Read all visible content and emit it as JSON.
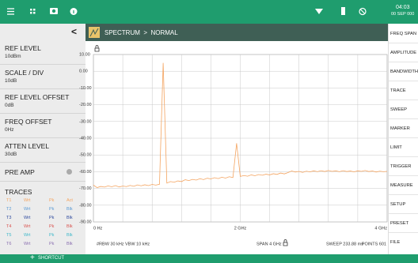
{
  "status_bar": {
    "time": "04:03",
    "date": "00 SEP 000"
  },
  "side_panel": {
    "items": [
      {
        "label": "REF LEVEL",
        "value": "10dBm"
      },
      {
        "label": "SCALE / DIV",
        "value": "10dB"
      },
      {
        "label": "REF LEVEL OFFSET",
        "value": "0dB"
      },
      {
        "label": "FREQ OFFSET",
        "value": "0Hz"
      },
      {
        "label": "ATTEN LEVEL",
        "value": "30dB"
      }
    ],
    "pre_amp": "PRE AMP",
    "traces": {
      "title": "TRACES",
      "rows": [
        {
          "cells": [
            "T1",
            "Wrt",
            "Pk",
            "Act"
          ],
          "color": "#f4a460"
        },
        {
          "cells": [
            "T2",
            "Wrt",
            "Pk",
            "Blk"
          ],
          "color": "#5b9bd5"
        },
        {
          "cells": [
            "T3",
            "Wrt",
            "Pk",
            "Blk"
          ],
          "color": "#2e4a9e"
        },
        {
          "cells": [
            "T4",
            "Wrt",
            "Pk",
            "Blk"
          ],
          "color": "#d9534f"
        },
        {
          "cells": [
            "T5",
            "Wrt",
            "Pk",
            "Blk"
          ],
          "color": "#3fb8c9"
        },
        {
          "cells": [
            "T6",
            "Wrt",
            "Pk",
            "Blk"
          ],
          "color": "#8a6fb0"
        }
      ]
    }
  },
  "header": {
    "breadcrumb": "SPECTRUM  >  NORMAL"
  },
  "chart_data": {
    "type": "line",
    "x": [
      0,
      0.05,
      0.1,
      0.15,
      0.2,
      0.25,
      0.3,
      0.35,
      0.4,
      0.45,
      0.5,
      0.55,
      0.6,
      0.65,
      0.7,
      0.75,
      0.8,
      0.85,
      0.9,
      0.95,
      1,
      1.05,
      1.1,
      1.15,
      1.2,
      1.25,
      1.3,
      1.35,
      1.4,
      1.45,
      1.5,
      1.55,
      1.6,
      1.65,
      1.7,
      1.75,
      1.8,
      1.85,
      1.9,
      1.95,
      2,
      2.05,
      2.1,
      2.15,
      2.2,
      2.25,
      2.3,
      2.35,
      2.4,
      2.45,
      2.5,
      2.55,
      2.6,
      2.65,
      2.7,
      2.75,
      2.8,
      2.85,
      2.9,
      2.95,
      3,
      3.05,
      3.1,
      3.15,
      3.2,
      3.25,
      3.3,
      3.35,
      3.4,
      3.45,
      3.5,
      3.55,
      3.6,
      3.65,
      3.7,
      3.75,
      3.8,
      3.85,
      3.9,
      3.95,
      4
    ],
    "series": [
      {
        "color": "#f4a460",
        "values": [
          -68,
          -69.5,
          -68.8,
          -69.2,
          -68.5,
          -69,
          -68.3,
          -69.1,
          -68.6,
          -68.9,
          -68.2,
          -68.7,
          -67.9,
          -68.4,
          -67.8,
          -68.3,
          -67.6,
          -68,
          -67.5,
          5,
          -66.8,
          -65.9,
          -66.3,
          -65.5,
          -65.9,
          -64.8,
          -65.3,
          -64.6,
          -65,
          -64.2,
          -64.7,
          -63.9,
          -64.3,
          -63.6,
          -64.1,
          -63.3,
          -63.8,
          -63,
          -63.5,
          -43,
          -62.8,
          -62.3,
          -62.7,
          -61.9,
          -62.4,
          -61.7,
          -62.1,
          -61.5,
          -61.9,
          -61.2,
          -61.6,
          -60.8,
          -61.3,
          -60.5,
          -59.6,
          -60.2,
          -59.8,
          -60.4,
          -59.7,
          -60.1,
          -59.5,
          -60,
          -59.4,
          -59.9,
          -59.3,
          -59.8,
          -59.5,
          -60,
          -59.4,
          -59.9,
          -59.6,
          -60.1,
          -59.5,
          -59.8,
          -59.3,
          -59.9,
          -59.6,
          -60.2,
          -59.7,
          -60,
          -59.8
        ]
      }
    ],
    "xlim": [
      0,
      4
    ],
    "xticks": [
      {
        "value": 0,
        "label": "0 Hz"
      },
      {
        "value": 2,
        "label": "2 GHz"
      },
      {
        "value": 4,
        "label": "4 GHz"
      }
    ],
    "ylim": [
      -90,
      10
    ],
    "yticks": [
      {
        "value": 10,
        "label": "10.00"
      },
      {
        "value": 0,
        "label": "0.00"
      },
      {
        "value": -10,
        "label": "-10.00"
      },
      {
        "value": -20,
        "label": "-20.00"
      },
      {
        "value": -30,
        "label": "-30.00"
      },
      {
        "value": -40,
        "label": "-40.00"
      },
      {
        "value": -50,
        "label": "-50.00"
      },
      {
        "value": -60,
        "label": "-60.00"
      },
      {
        "value": -70,
        "label": "-70.00"
      },
      {
        "value": -80,
        "label": "-80.00"
      },
      {
        "value": -90,
        "label": "-90.00"
      }
    ],
    "grid": true
  },
  "info_bar": {
    "rbw": "#RBW 30 kHz",
    "vbw": "VBW 10 kHz",
    "span": "SPAN 4 GHz",
    "sweep": "SWEEP 233.88 ms",
    "points": "POINTS 601"
  },
  "menu": [
    "FREQ SPAN",
    "AMPLITUDE",
    "BANDWIDTH",
    "TRACE",
    "SWEEP",
    "MARKER",
    "LIMIT",
    "TRIGGER",
    "MEASURE",
    "SETUP",
    "PRESET",
    "FILE"
  ],
  "bottom_bar": {
    "shortcut": "SHORTCUT"
  }
}
